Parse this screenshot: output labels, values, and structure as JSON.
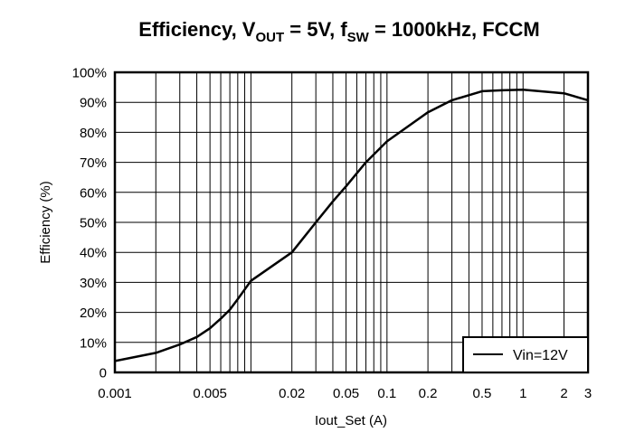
{
  "chart_data": {
    "type": "line",
    "title": {
      "main": "Efficiency, V",
      "sub1": "OUT",
      "mid": " = 5V, f",
      "sub2": "SW",
      "end": " = 1000kHz, FCCM"
    },
    "xlabel": "Iout_Set (A)",
    "ylabel": "Efficiency (%)",
    "x_scale": "log",
    "xlim": [
      0.001,
      3
    ],
    "ylim": [
      0,
      100
    ],
    "grid": true,
    "x_ticks": [
      0.001,
      0.005,
      0.02,
      0.05,
      0.1,
      0.2,
      0.5,
      1,
      2,
      3
    ],
    "x_tick_labels": [
      "0.001",
      "0.005",
      "0.02",
      "0.05",
      "0.1",
      "0.2",
      "0.5",
      "1",
      "2",
      "3"
    ],
    "y_ticks": [
      0,
      10,
      20,
      30,
      40,
      50,
      60,
      70,
      80,
      90,
      100
    ],
    "y_tick_labels": [
      "0",
      "10%",
      "20%",
      "30%",
      "40%",
      "50%",
      "60%",
      "70%",
      "80%",
      "90%",
      "100%"
    ],
    "legend_position": "bottom-right",
    "series": [
      {
        "name": "Vin=12V",
        "color": "#000000",
        "x": [
          0.001,
          0.002,
          0.003,
          0.004,
          0.005,
          0.006,
          0.007,
          0.008,
          0.01,
          0.02,
          0.03,
          0.04,
          0.05,
          0.07,
          0.1,
          0.2,
          0.3,
          0.5,
          0.7,
          1,
          2,
          3
        ],
        "y": [
          3.8,
          6.5,
          9.3,
          11.8,
          14.7,
          17.9,
          20.9,
          24.4,
          30.5,
          40,
          50,
          57,
          62,
          70,
          77,
          86.7,
          90.7,
          93.7,
          94,
          94.2,
          93,
          90.7
        ]
      }
    ]
  }
}
